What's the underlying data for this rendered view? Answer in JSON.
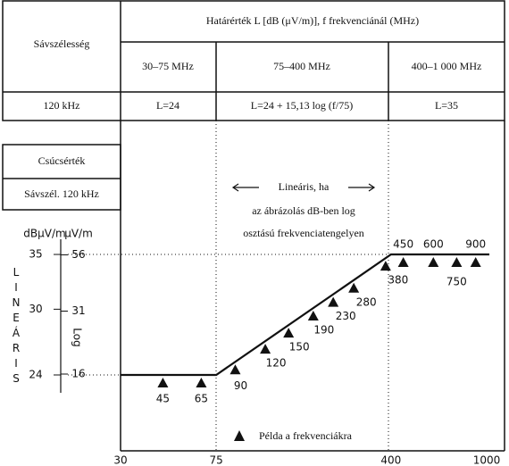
{
  "header": {
    "left": "Sávszélesség",
    "title": "Határérték L [dB (μV/m)], f frekvenciánál (MHz)",
    "bands": [
      "30–75 MHz",
      "75–400 MHz",
      "400–1 000 MHz"
    ]
  },
  "row": {
    "bandwidth": "120 kHz",
    "limits": [
      "L=24",
      "L=24 + 15,13 log (f/75)",
      "L=35"
    ]
  },
  "side": {
    "detector": "Csúcsérték",
    "bandwidth": "Sávszél. 120 kHz"
  },
  "scale": {
    "db_unit": "dBμV/m",
    "uv_unit": "μV/m",
    "db_ticks": [
      35,
      30,
      24
    ],
    "uv_ticks": [
      56,
      31,
      16
    ],
    "linear_label": "LINEÁRIS",
    "log_label": "Log"
  },
  "note": [
    "Lineáris, ha",
    "az ábrázolás dB-ben log",
    "osztású frekvenciatengelyen"
  ],
  "frequency_axis": {
    "ticks": [
      30,
      75,
      400,
      1000
    ]
  },
  "examples": {
    "frequencies": [
      45,
      65,
      90,
      120,
      150,
      190,
      230,
      280,
      380,
      450,
      600,
      750,
      900
    ],
    "legend": "Példa a frekvenciákra"
  }
}
